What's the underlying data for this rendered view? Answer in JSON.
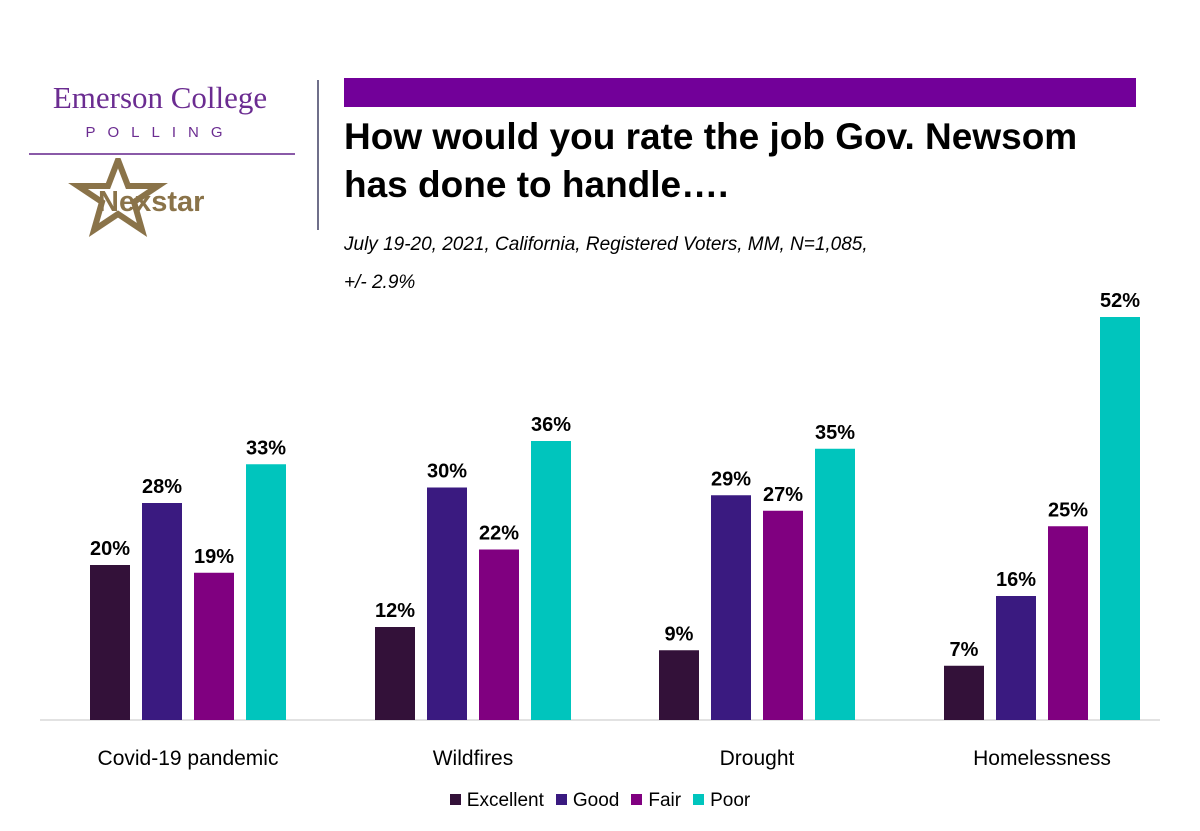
{
  "logos": {
    "emerson_line1": "Emerson College",
    "emerson_line2": "POLLING",
    "nexstar": "Nexstar"
  },
  "title": "How would you rate the job Gov. Newsom has done to handle….",
  "subtitle_line1": "July 19-20, 2021, California, Registered Voters, MM,  N=1,085,",
  "subtitle_line2": "+/-  2.9%",
  "colors": {
    "title_bar": "#720099",
    "excellent": "#331139",
    "good": "#3a1a80",
    "fair": "#800080",
    "poor": "#00c5bd"
  },
  "chart_data": {
    "type": "bar",
    "title": "How would you rate the job Gov. Newsom has done to handle….",
    "xlabel": "",
    "ylabel": "",
    "ylim": [
      0,
      55
    ],
    "grid": false,
    "legend_position": "bottom",
    "categories": [
      "Covid-19 pandemic",
      "Wildfires",
      "Drought",
      "Homelessness"
    ],
    "series": [
      {
        "name": "Excellent",
        "values": [
          20,
          12,
          9,
          7
        ],
        "labels": [
          "20%",
          "12%",
          "9%",
          "7%"
        ]
      },
      {
        "name": "Good",
        "values": [
          28,
          30,
          29,
          16
        ],
        "labels": [
          "28%",
          "30%",
          "29%",
          "16%"
        ]
      },
      {
        "name": "Fair",
        "values": [
          19,
          22,
          27,
          25
        ],
        "labels": [
          "19%",
          "22%",
          "27%",
          "25%"
        ]
      },
      {
        "name": "Poor",
        "values": [
          33,
          36,
          35,
          52
        ],
        "labels": [
          "33%",
          "36%",
          "35%",
          "52%"
        ]
      }
    ]
  }
}
